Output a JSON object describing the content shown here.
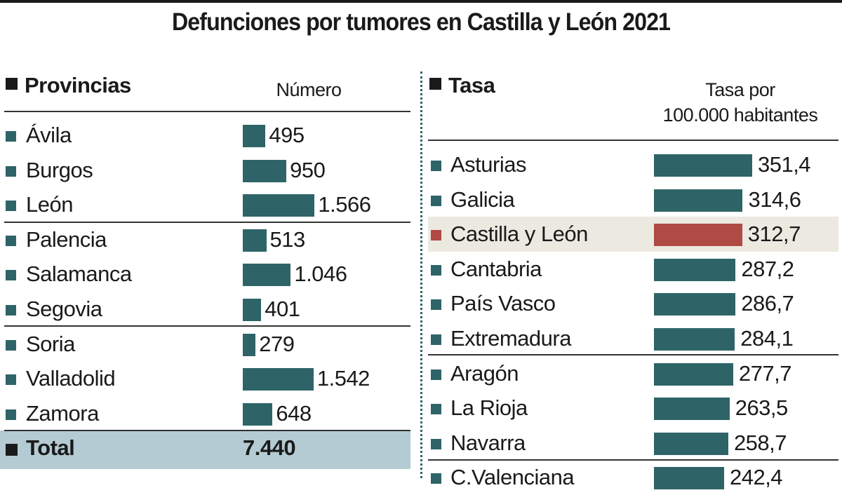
{
  "title": "Defunciones por tumores en Castilla y León 2021",
  "colors": {
    "bar": "#2e6468",
    "highlight_bar": "#b04a45",
    "highlight_row": "#ebe9e0",
    "total_row": "#b4cbd3"
  },
  "chart_data": [
    {
      "type": "bar",
      "orientation": "horizontal",
      "header": "Provincias",
      "column_header": "Número",
      "categories": [
        "Ávila",
        "Burgos",
        "León",
        "Palencia",
        "Salamanca",
        "Segovia",
        "Soria",
        "Valladolid",
        "Zamora"
      ],
      "values": [
        495,
        950,
        1566,
        513,
        1046,
        401,
        279,
        1542,
        648
      ],
      "value_labels": [
        "495",
        "950",
        "1.566",
        "513",
        "1.046",
        "401",
        "279",
        "1.542",
        "648"
      ],
      "total": {
        "label": "Total",
        "value": 7440,
        "value_label": "7.440"
      }
    },
    {
      "type": "bar",
      "orientation": "horizontal",
      "header": "Tasa",
      "column_header": [
        "Tasa por",
        "100.000 habitantes"
      ],
      "categories": [
        "Asturias",
        "Galicia",
        "Castilla y León",
        "Cantabria",
        "País Vasco",
        "Extremadura",
        "Aragón",
        "La Rioja",
        "Navarra",
        "C.Valenciana"
      ],
      "values": [
        351.4,
        314.6,
        312.7,
        287.2,
        286.7,
        284.1,
        277.7,
        263.5,
        258.7,
        242.4
      ],
      "value_labels": [
        "351,4",
        "314,6",
        "312,7",
        "287,2",
        "286,7",
        "284,1",
        "277,7",
        "263,5",
        "258,7",
        "242,4"
      ],
      "highlight": "Castilla y León"
    }
  ]
}
